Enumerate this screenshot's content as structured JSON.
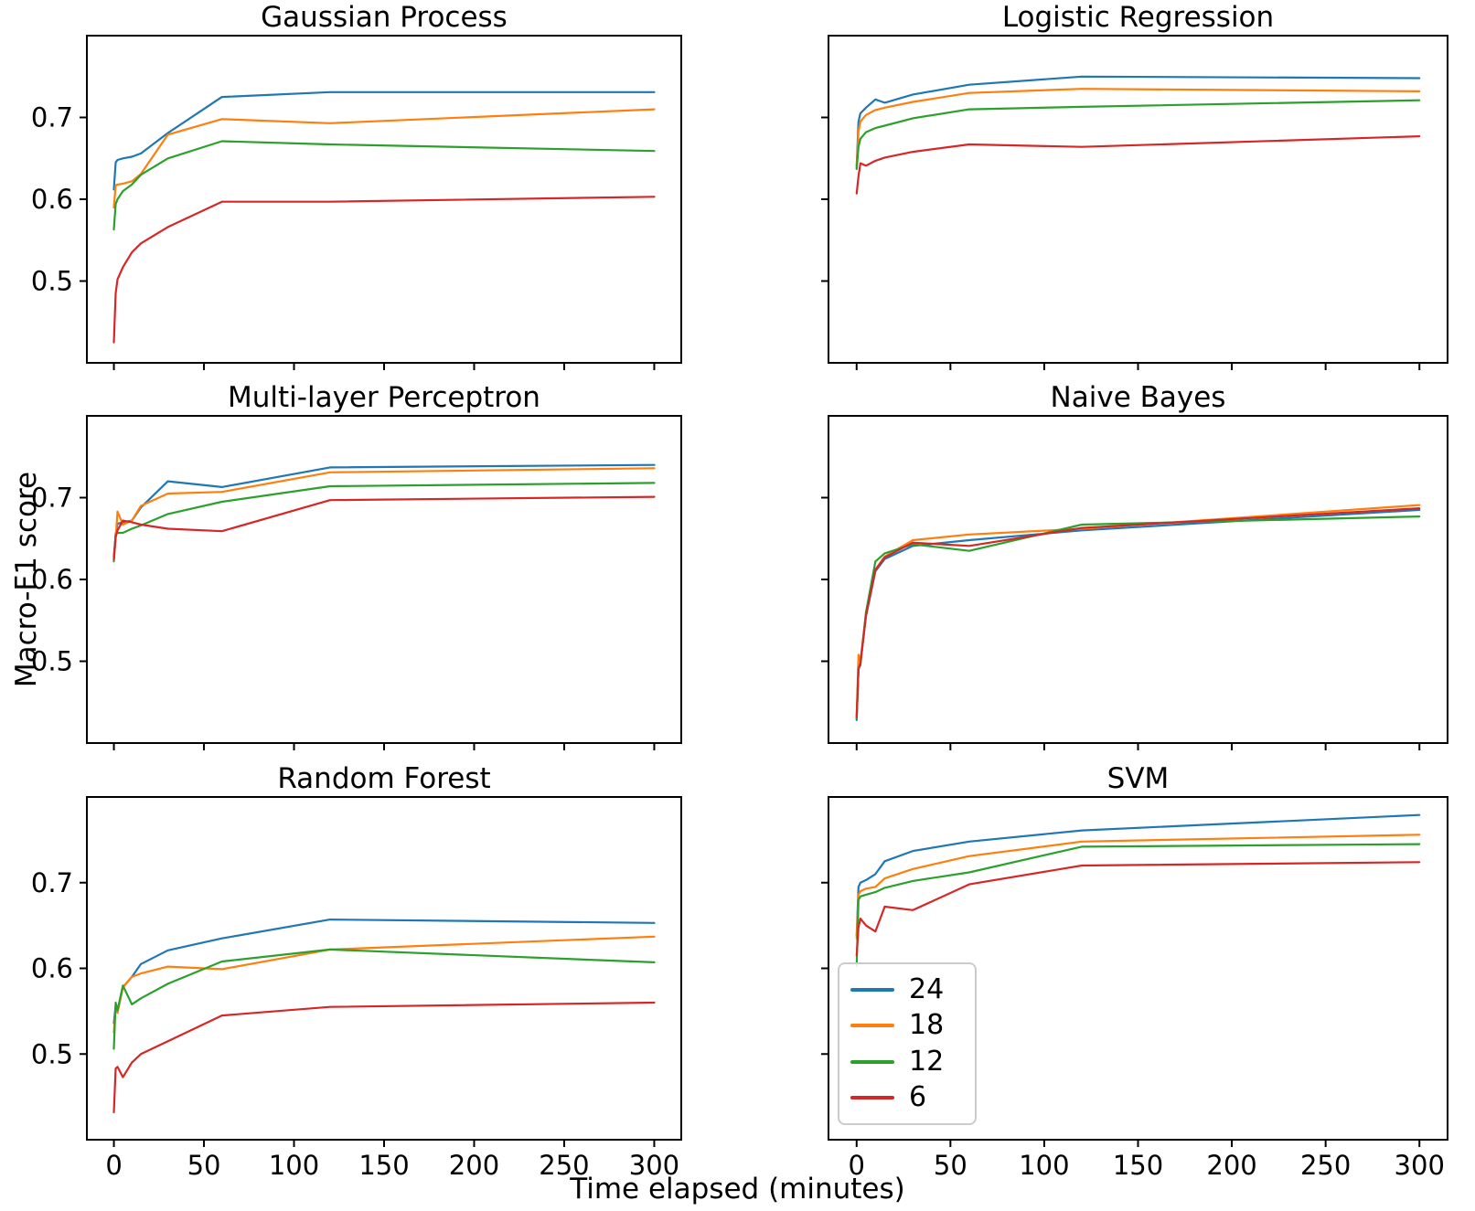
{
  "figure": {
    "ylabel": "Macro-F1 score",
    "xlabel": "Time elapsed (minutes)",
    "background": "#ffffff"
  },
  "legend": {
    "entries": [
      {
        "label": "24",
        "color": "#1f77b4"
      },
      {
        "label": "18",
        "color": "#ff7f0e"
      },
      {
        "label": "12",
        "color": "#2ca02c"
      },
      {
        "label": "6",
        "color": "#d62728"
      }
    ]
  },
  "chart_data": {
    "type": "line",
    "layout": "2x3 subplot grid",
    "xlabel": "Time elapsed (minutes)",
    "ylabel": "Macro-F1 score",
    "x": [
      0,
      1,
      2,
      5,
      10,
      15,
      30,
      60,
      120,
      300
    ],
    "x_ticks": [
      0,
      50,
      100,
      150,
      200,
      250,
      300
    ],
    "y_ticks": [
      0.5,
      0.6,
      0.7
    ],
    "xlim": [
      -15,
      315
    ],
    "ylim": [
      0.4,
      0.8
    ],
    "grid": false,
    "legend_position": "lower left of SVM subplot",
    "charts": [
      {
        "title": "Gaussian Process",
        "series": [
          {
            "name": "24",
            "color": "#1f77b4",
            "values": [
              0.612,
              0.645,
              0.648,
              0.65,
              0.652,
              0.656,
              0.681,
              0.725,
              0.731,
              0.731
            ]
          },
          {
            "name": "18",
            "color": "#ff7f0e",
            "values": [
              0.59,
              0.617,
              0.618,
              0.619,
              0.622,
              0.631,
              0.679,
              0.698,
              0.693,
              0.71
            ]
          },
          {
            "name": "12",
            "color": "#2ca02c",
            "values": [
              0.563,
              0.594,
              0.6,
              0.61,
              0.618,
              0.63,
              0.65,
              0.671,
              0.667,
              0.659
            ]
          },
          {
            "name": "6",
            "color": "#d62728",
            "values": [
              0.425,
              0.485,
              0.502,
              0.517,
              0.535,
              0.546,
              0.566,
              0.597,
              0.597,
              0.603
            ]
          }
        ]
      },
      {
        "title": "Logistic Regression",
        "series": [
          {
            "name": "24",
            "color": "#1f77b4",
            "values": [
              0.64,
              0.695,
              0.705,
              0.712,
              0.722,
              0.718,
              0.728,
              0.74,
              0.75,
              0.748
            ]
          },
          {
            "name": "18",
            "color": "#ff7f0e",
            "values": [
              0.638,
              0.683,
              0.695,
              0.703,
              0.709,
              0.712,
              0.719,
              0.73,
              0.735,
              0.732
            ]
          },
          {
            "name": "12",
            "color": "#2ca02c",
            "values": [
              0.637,
              0.664,
              0.674,
              0.682,
              0.687,
              0.69,
              0.699,
              0.71,
              0.713,
              0.721
            ]
          },
          {
            "name": "6",
            "color": "#d62728",
            "values": [
              0.607,
              0.628,
              0.644,
              0.641,
              0.647,
              0.651,
              0.658,
              0.667,
              0.664,
              0.677
            ]
          }
        ]
      },
      {
        "title": "Multi-layer Perceptron",
        "series": [
          {
            "name": "24",
            "color": "#1f77b4",
            "values": [
              0.628,
              0.655,
              0.668,
              0.67,
              0.672,
              0.688,
              0.72,
              0.713,
              0.737,
              0.74
            ]
          },
          {
            "name": "18",
            "color": "#ff7f0e",
            "values": [
              0.625,
              0.65,
              0.683,
              0.667,
              0.672,
              0.69,
              0.705,
              0.707,
              0.731,
              0.736
            ]
          },
          {
            "name": "12",
            "color": "#2ca02c",
            "values": [
              0.622,
              0.655,
              0.657,
              0.657,
              0.662,
              0.666,
              0.68,
              0.695,
              0.714,
              0.718
            ]
          },
          {
            "name": "6",
            "color": "#d62728",
            "values": [
              0.625,
              0.652,
              0.66,
              0.672,
              0.67,
              0.667,
              0.662,
              0.659,
              0.697,
              0.701
            ]
          }
        ]
      },
      {
        "title": "Naive Bayes",
        "series": [
          {
            "name": "24",
            "color": "#1f77b4",
            "values": [
              0.428,
              0.49,
              0.497,
              0.555,
              0.61,
              0.625,
              0.641,
              0.648,
              0.66,
              0.685
            ]
          },
          {
            "name": "18",
            "color": "#ff7f0e",
            "values": [
              0.432,
              0.508,
              0.5,
              0.558,
              0.612,
              0.628,
              0.648,
              0.655,
              0.662,
              0.691
            ]
          },
          {
            "name": "12",
            "color": "#2ca02c",
            "values": [
              0.43,
              0.492,
              0.495,
              0.56,
              0.622,
              0.632,
              0.643,
              0.635,
              0.667,
              0.677
            ]
          },
          {
            "name": "6",
            "color": "#d62728",
            "values": [
              0.432,
              0.49,
              0.498,
              0.556,
              0.612,
              0.627,
              0.645,
              0.641,
              0.663,
              0.687
            ]
          }
        ]
      },
      {
        "title": "Random Forest",
        "series": [
          {
            "name": "24",
            "color": "#1f77b4",
            "values": [
              0.536,
              0.557,
              0.549,
              0.578,
              0.59,
              0.605,
              0.621,
              0.635,
              0.657,
              0.653
            ]
          },
          {
            "name": "18",
            "color": "#ff7f0e",
            "values": [
              0.525,
              0.555,
              0.548,
              0.578,
              0.59,
              0.594,
              0.602,
              0.599,
              0.622,
              0.637
            ]
          },
          {
            "name": "12",
            "color": "#2ca02c",
            "values": [
              0.506,
              0.56,
              0.551,
              0.58,
              0.558,
              0.565,
              0.582,
              0.608,
              0.622,
              0.607
            ]
          },
          {
            "name": "6",
            "color": "#d62728",
            "values": [
              0.432,
              0.483,
              0.485,
              0.473,
              0.49,
              0.5,
              0.515,
              0.545,
              0.555,
              0.56
            ]
          }
        ]
      },
      {
        "title": "SVM",
        "series": [
          {
            "name": "24",
            "color": "#1f77b4",
            "values": [
              0.638,
              0.695,
              0.7,
              0.703,
              0.71,
              0.725,
              0.737,
              0.748,
              0.761,
              0.779
            ]
          },
          {
            "name": "18",
            "color": "#ff7f0e",
            "values": [
              0.635,
              0.686,
              0.69,
              0.693,
              0.695,
              0.705,
              0.716,
              0.731,
              0.748,
              0.756
            ]
          },
          {
            "name": "12",
            "color": "#2ca02c",
            "values": [
              0.603,
              0.68,
              0.684,
              0.686,
              0.689,
              0.694,
              0.702,
              0.712,
              0.742,
              0.745
            ]
          },
          {
            "name": "6",
            "color": "#d62728",
            "values": [
              0.615,
              0.648,
              0.658,
              0.65,
              0.643,
              0.672,
              0.668,
              0.698,
              0.72,
              0.724
            ]
          }
        ]
      }
    ]
  }
}
